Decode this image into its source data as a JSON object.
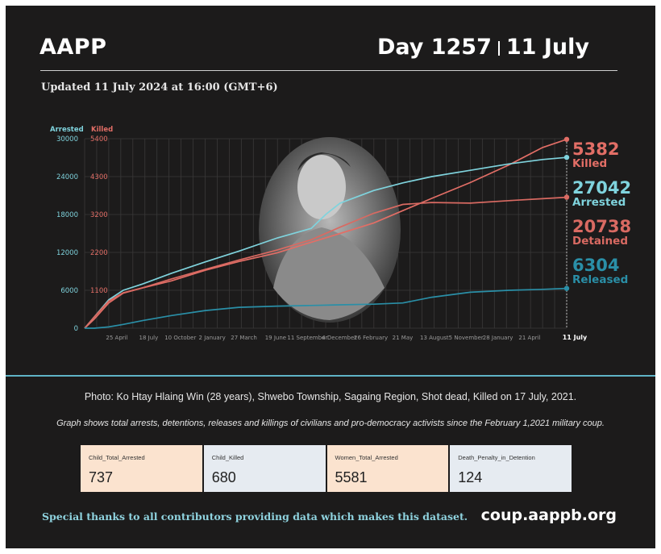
{
  "header": {
    "brand": "AAPP",
    "day": "Day 1257",
    "date": "11 July",
    "updated": "Updated 11 July 2024 at 16:00 (GMT+6)"
  },
  "colors": {
    "arrested": "#7fd3dd",
    "killed": "#e26e66",
    "detained": "#d96a62",
    "released": "#2a8fa7",
    "background": "#1c1b1b"
  },
  "photo": {
    "description_icon": "portrait-photo-grayscale"
  },
  "chart_data": {
    "type": "line",
    "axis_titles": {
      "left_primary": "Arrested",
      "left_secondary": "Killed"
    },
    "y_ticks_arrested": [
      0,
      6000,
      12000,
      18000,
      24000,
      30000
    ],
    "y_ticks_killed": [
      "1100",
      "2200",
      "3200",
      "4300",
      "5400"
    ],
    "x_tick_labels": [
      "25 April",
      "18 July",
      "10 October",
      "2 January",
      "27 March",
      "19 June",
      "11 September",
      "4 December",
      "26 February",
      "21 May",
      "13 August",
      "5 November",
      "28 January",
      "21 April",
      "11 July"
    ],
    "ylim_arrested": [
      0,
      30000
    ],
    "ylim_killed": [
      0,
      5400
    ],
    "series": [
      {
        "name": "Killed",
        "axis": "killed",
        "x": [
          0,
          0.02,
          0.05,
          0.08,
          0.12,
          0.18,
          0.25,
          0.32,
          0.4,
          0.47,
          0.53,
          0.6,
          0.66,
          0.72,
          0.8,
          0.88,
          0.95,
          1.0
        ],
        "values": [
          0,
          260,
          720,
          1000,
          1150,
          1350,
          1650,
          1900,
          2150,
          2450,
          2700,
          3000,
          3350,
          3700,
          4150,
          4650,
          5150,
          5382
        ]
      },
      {
        "name": "Arrested",
        "axis": "arrested",
        "x": [
          0,
          0.02,
          0.05,
          0.08,
          0.12,
          0.18,
          0.25,
          0.32,
          0.4,
          0.47,
          0.5,
          0.53,
          0.6,
          0.66,
          0.72,
          0.8,
          0.88,
          0.95,
          1.0
        ],
        "values": [
          0,
          1800,
          4500,
          6000,
          7000,
          8700,
          10500,
          12200,
          14300,
          15800,
          18000,
          19800,
          21800,
          23000,
          24000,
          25000,
          26000,
          26700,
          27042
        ]
      },
      {
        "name": "Detained",
        "axis": "arrested",
        "x": [
          0,
          0.02,
          0.05,
          0.08,
          0.12,
          0.18,
          0.25,
          0.32,
          0.4,
          0.47,
          0.53,
          0.6,
          0.66,
          0.72,
          0.8,
          0.88,
          0.95,
          1.0
        ],
        "values": [
          0,
          1800,
          4300,
          5600,
          6400,
          7800,
          9300,
          10800,
          12400,
          14000,
          16000,
          18200,
          19600,
          19900,
          19800,
          20200,
          20500,
          20738
        ]
      },
      {
        "name": "Released",
        "axis": "arrested",
        "x": [
          0,
          0.02,
          0.05,
          0.08,
          0.12,
          0.18,
          0.25,
          0.32,
          0.4,
          0.47,
          0.53,
          0.6,
          0.66,
          0.72,
          0.8,
          0.88,
          0.95,
          1.0
        ],
        "values": [
          0,
          0,
          200,
          600,
          1200,
          2000,
          2800,
          3300,
          3500,
          3600,
          3700,
          3800,
          4000,
          4900,
          5700,
          6000,
          6150,
          6304
        ]
      }
    ],
    "end_labels": [
      {
        "value": "5382",
        "label": "Killed",
        "color": "#e26e66"
      },
      {
        "value": "27042",
        "label": "Arrested",
        "color": "#7fd3dd"
      },
      {
        "value": "20738",
        "label": "Detained",
        "color": "#d96a62"
      },
      {
        "value": "6304",
        "label": "Released",
        "color": "#2a8fa7"
      }
    ],
    "grid": true
  },
  "captions": {
    "photo": "Photo: Ko Htay Hlaing Win (28 years), Shwebo Township, Sagaing Region, Shot dead, Killed on 17 July, 2021.",
    "graph_note": "Graph shows total arrests, detentions, releases and killings of civilians and pro-democracy activists since the February 1,2021 military coup."
  },
  "stats": [
    {
      "label": "Child_Total_Arrested",
      "value": "737",
      "bg": "#fbe3cf"
    },
    {
      "label": "Child_Killed",
      "value": "680",
      "bg": "#e6ebf1"
    },
    {
      "label": "Women_Total_Arrested",
      "value": "5581",
      "bg": "#fbe3cf"
    },
    {
      "label": "Death_Penalty_in_Detention",
      "value": "124",
      "bg": "#e6ebf1"
    }
  ],
  "footer": {
    "thanks": "Special thanks to all contributors providing data which makes this dataset.",
    "site": "coup.aappb.org"
  }
}
